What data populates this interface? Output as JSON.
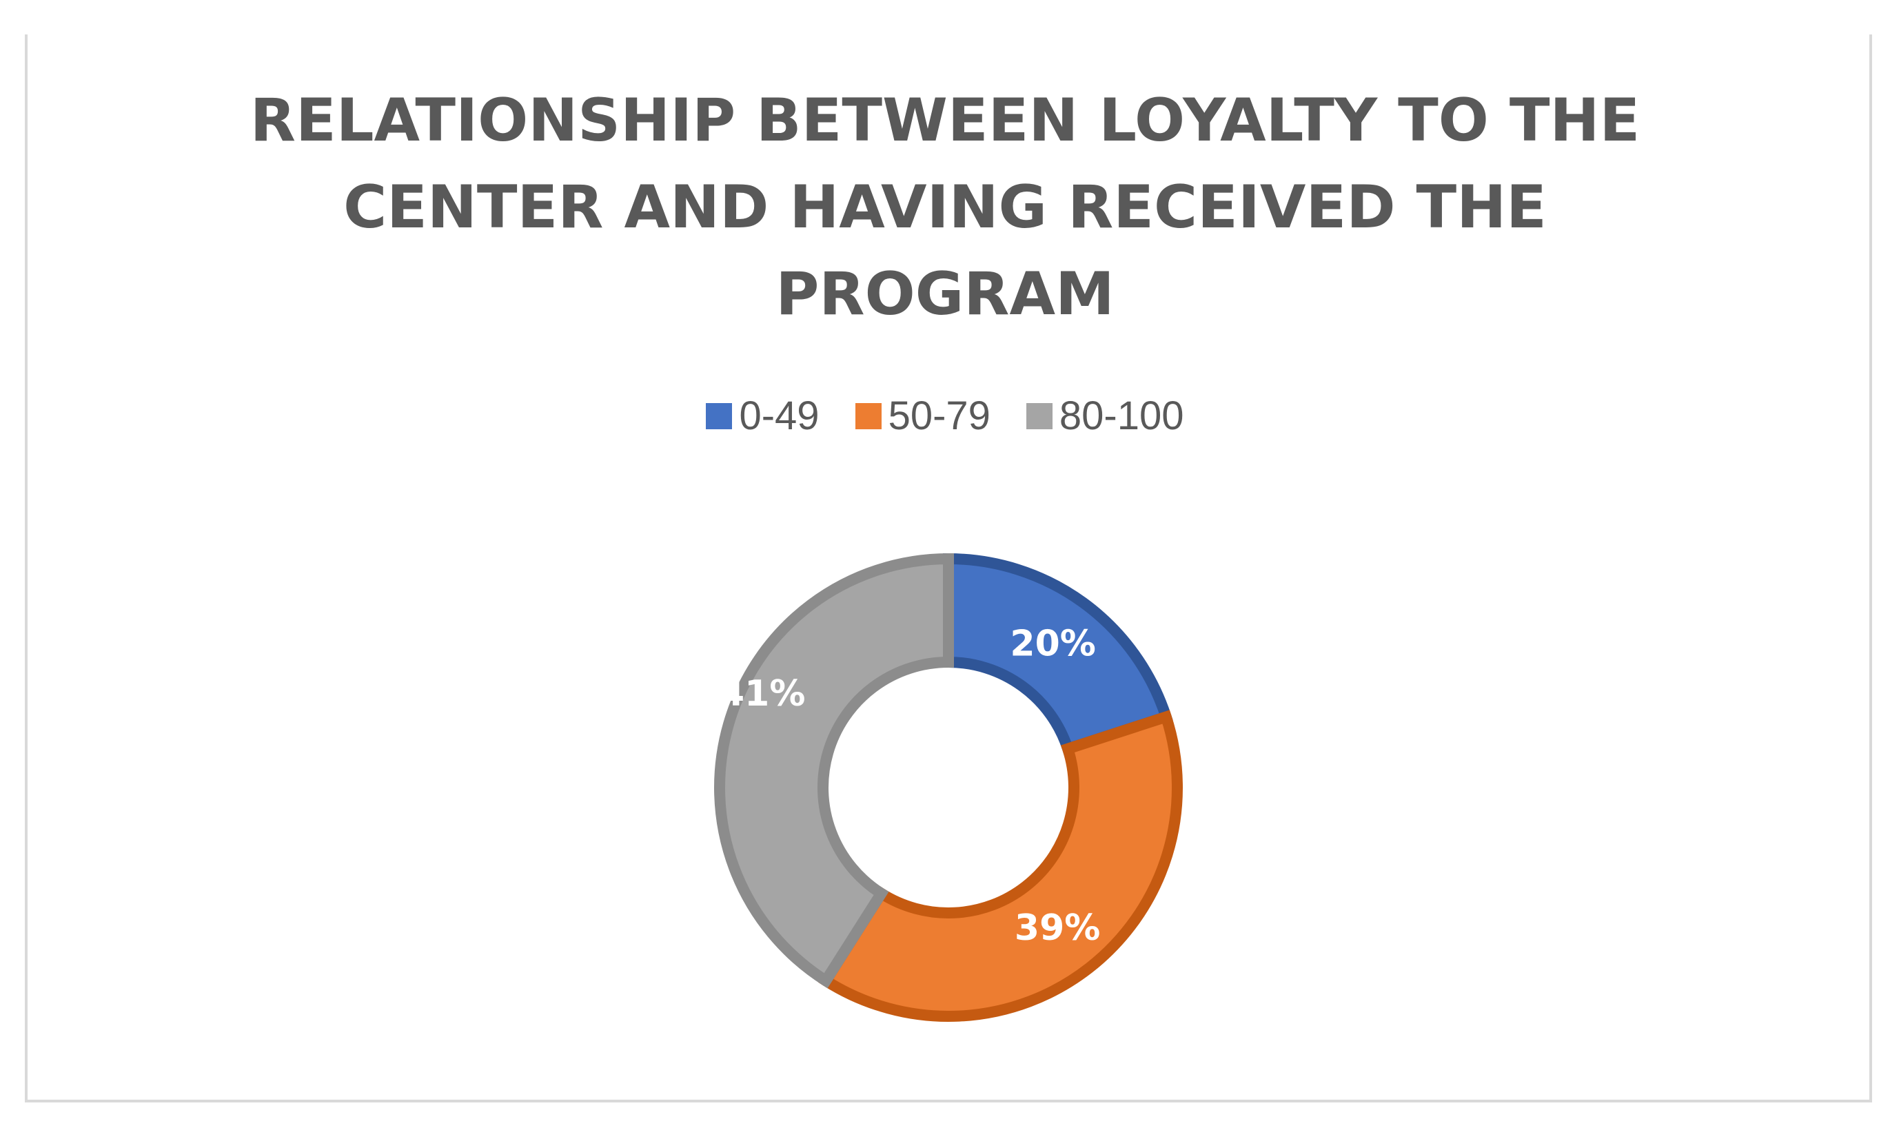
{
  "chart_data": {
    "type": "pie",
    "variant": "donut",
    "title": "RELATIONSHIP BETWEEN LOYALTY TO THE CENTER AND HAVING RECEIVED THE PROGRAM",
    "title_lines": [
      "RELATIONSHIP BETWEEN LOYALTY TO THE",
      "CENTER AND HAVING RECEIVED THE",
      "PROGRAM"
    ],
    "categories": [
      "0-49",
      "50-79",
      "80-100"
    ],
    "values": [
      20,
      39,
      41
    ],
    "labels": [
      "20%",
      "39%",
      "41%"
    ],
    "colors": [
      "#4472c4",
      "#ed7d31",
      "#a5a5a5"
    ],
    "edge_colors": [
      "#2f5597",
      "#c55a11",
      "#8c8c8c"
    ],
    "legend_position": "top"
  }
}
